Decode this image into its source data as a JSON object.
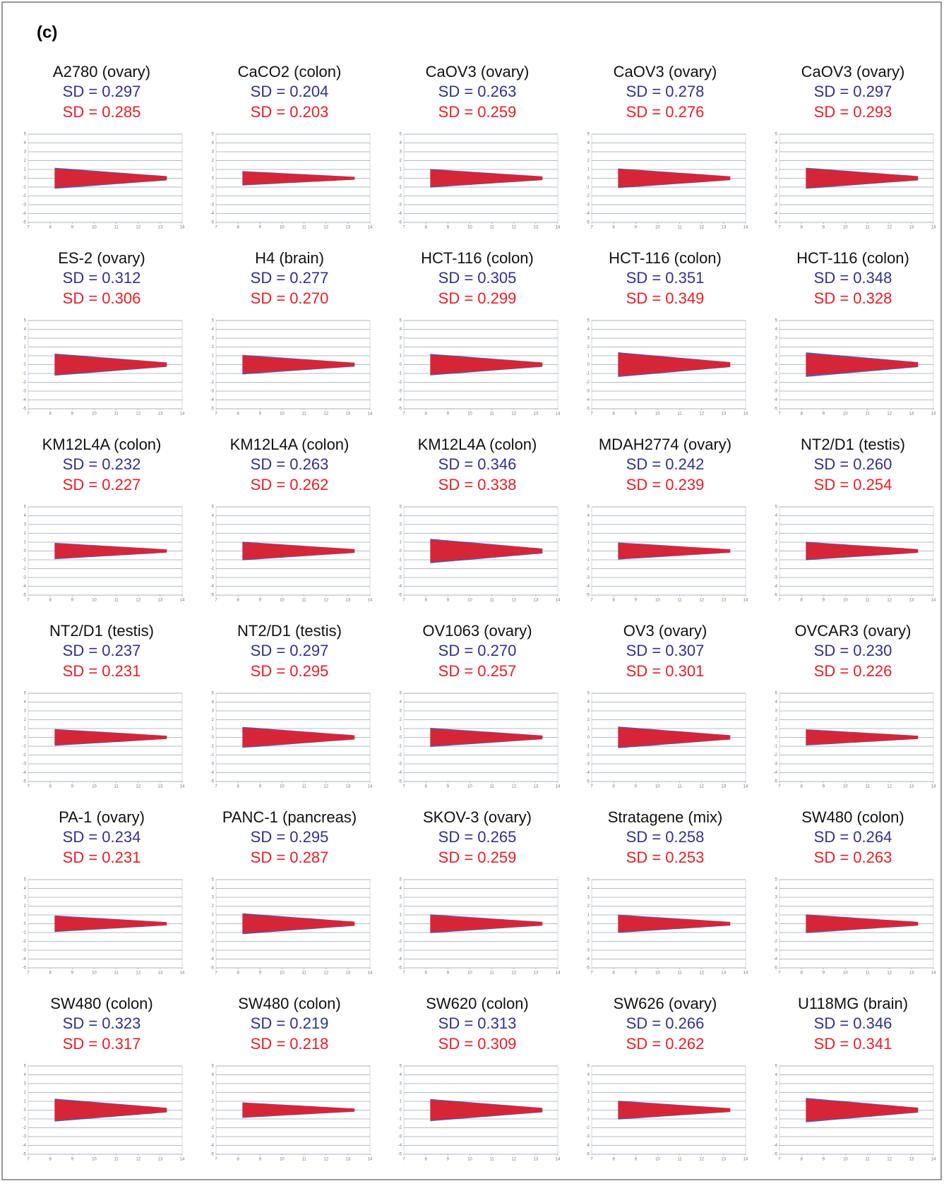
{
  "chart_data": {
    "type": "scatter",
    "label": "(c)",
    "colors": [
      "#2e3192",
      "#ed1c24"
    ],
    "xlim": [
      7,
      14
    ],
    "xticks": [
      7,
      8,
      9,
      10,
      11,
      12,
      13,
      14
    ],
    "ylim": [
      -5,
      5
    ],
    "yticks": [
      -5,
      -4,
      -3,
      -2,
      -1,
      0,
      1,
      2,
      3,
      4,
      5
    ],
    "grid": true,
    "panels": [
      {
        "title": "A2780 (ovary)",
        "sd": [
          {
            "value": 0.297,
            "label": "SD = 0.297"
          },
          {
            "value": 0.285,
            "label": "SD = 0.285"
          }
        ]
      },
      {
        "title": "CaCO2 (colon)",
        "sd": [
          {
            "value": 0.204,
            "label": "SD = 0.204"
          },
          {
            "value": 0.203,
            "label": "SD = 0.203"
          }
        ]
      },
      {
        "title": "CaOV3 (ovary)",
        "sd": [
          {
            "value": 0.263,
            "label": "SD = 0.263"
          },
          {
            "value": 0.259,
            "label": "SD = 0.259"
          }
        ]
      },
      {
        "title": "CaOV3 (ovary)",
        "sd": [
          {
            "value": 0.278,
            "label": "SD = 0.278"
          },
          {
            "value": 0.276,
            "label": "SD = 0.276"
          }
        ]
      },
      {
        "title": "CaOV3 (ovary)",
        "sd": [
          {
            "value": 0.297,
            "label": "SD = 0.297"
          },
          {
            "value": 0.293,
            "label": "SD = 0.293"
          }
        ]
      },
      {
        "title": "ES-2 (ovary)",
        "sd": [
          {
            "value": 0.312,
            "label": "SD = 0.312"
          },
          {
            "value": 0.306,
            "label": "SD = 0.306"
          }
        ]
      },
      {
        "title": "H4 (brain)",
        "sd": [
          {
            "value": 0.277,
            "label": "SD = 0.277"
          },
          {
            "value": 0.27,
            "label": "SD = 0.270"
          }
        ]
      },
      {
        "title": "HCT-116 (colon)",
        "sd": [
          {
            "value": 0.305,
            "label": "SD = 0.305"
          },
          {
            "value": 0.299,
            "label": "SD = 0.299"
          }
        ]
      },
      {
        "title": "HCT-116 (colon)",
        "sd": [
          {
            "value": 0.351,
            "label": "SD = 0.351"
          },
          {
            "value": 0.349,
            "label": "SD = 0.349"
          }
        ]
      },
      {
        "title": "HCT-116 (colon)",
        "sd": [
          {
            "value": 0.348,
            "label": "SD = 0.348"
          },
          {
            "value": 0.328,
            "label": "SD = 0.328"
          }
        ]
      },
      {
        "title": "KM12L4A (colon)",
        "sd": [
          {
            "value": 0.232,
            "label": "SD = 0.232"
          },
          {
            "value": 0.227,
            "label": "SD = 0.227"
          }
        ]
      },
      {
        "title": "KM12L4A (colon)",
        "sd": [
          {
            "value": 0.263,
            "label": "SD = 0.263"
          },
          {
            "value": 0.262,
            "label": "SD = 0.262"
          }
        ]
      },
      {
        "title": "KM12L4A (colon)",
        "sd": [
          {
            "value": 0.346,
            "label": "SD = 0.346"
          },
          {
            "value": 0.338,
            "label": "SD = 0.338"
          }
        ]
      },
      {
        "title": "MDAH2774 (ovary)",
        "sd": [
          {
            "value": 0.242,
            "label": "SD = 0.242"
          },
          {
            "value": 0.239,
            "label": "SD = 0.239"
          }
        ]
      },
      {
        "title": "NT2/D1 (testis)",
        "sd": [
          {
            "value": 0.26,
            "label": "SD = 0.260"
          },
          {
            "value": 0.254,
            "label": "SD = 0.254"
          }
        ]
      },
      {
        "title": "NT2/D1 (testis)",
        "sd": [
          {
            "value": 0.237,
            "label": "SD = 0.237"
          },
          {
            "value": 0.231,
            "label": "SD = 0.231"
          }
        ]
      },
      {
        "title": "NT2/D1 (testis)",
        "sd": [
          {
            "value": 0.297,
            "label": "SD = 0.297"
          },
          {
            "value": 0.295,
            "label": "SD = 0.295"
          }
        ]
      },
      {
        "title": "OV1063 (ovary)",
        "sd": [
          {
            "value": 0.27,
            "label": "SD = 0.270"
          },
          {
            "value": 0.257,
            "label": "SD = 0.257"
          }
        ]
      },
      {
        "title": "OV3 (ovary)",
        "sd": [
          {
            "value": 0.307,
            "label": "SD = 0.307"
          },
          {
            "value": 0.301,
            "label": "SD = 0.301"
          }
        ]
      },
      {
        "title": "OVCAR3 (ovary)",
        "sd": [
          {
            "value": 0.23,
            "label": "SD = 0.230"
          },
          {
            "value": 0.226,
            "label": "SD = 0.226"
          }
        ]
      },
      {
        "title": "PA-1 (ovary)",
        "sd": [
          {
            "value": 0.234,
            "label": "SD = 0.234"
          },
          {
            "value": 0.231,
            "label": "SD = 0.231"
          }
        ]
      },
      {
        "title": "PANC-1 (pancreas)",
        "sd": [
          {
            "value": 0.295,
            "label": "SD = 0.295"
          },
          {
            "value": 0.287,
            "label": "SD = 0.287"
          }
        ]
      },
      {
        "title": "SKOV-3 (ovary)",
        "sd": [
          {
            "value": 0.265,
            "label": "SD = 0.265"
          },
          {
            "value": 0.259,
            "label": "SD = 0.259"
          }
        ]
      },
      {
        "title": "Stratagene (mix)",
        "sd": [
          {
            "value": 0.258,
            "label": "SD = 0.258"
          },
          {
            "value": 0.253,
            "label": "SD = 0.253"
          }
        ]
      },
      {
        "title": "SW480 (colon)",
        "sd": [
          {
            "value": 0.264,
            "label": "SD = 0.264"
          },
          {
            "value": 0.263,
            "label": "SD = 0.263"
          }
        ]
      },
      {
        "title": "SW480 (colon)",
        "sd": [
          {
            "value": 0.323,
            "label": "SD = 0.323"
          },
          {
            "value": 0.317,
            "label": "SD = 0.317"
          }
        ]
      },
      {
        "title": "SW480 (colon)",
        "sd": [
          {
            "value": 0.219,
            "label": "SD = 0.219"
          },
          {
            "value": 0.218,
            "label": "SD = 0.218"
          }
        ]
      },
      {
        "title": "SW620 (colon)",
        "sd": [
          {
            "value": 0.313,
            "label": "SD = 0.313"
          },
          {
            "value": 0.309,
            "label": "SD = 0.309"
          }
        ]
      },
      {
        "title": "SW626 (ovary)",
        "sd": [
          {
            "value": 0.266,
            "label": "SD = 0.266"
          },
          {
            "value": 0.262,
            "label": "SD = 0.262"
          }
        ]
      },
      {
        "title": "U118MG (brain)",
        "sd": [
          {
            "value": 0.346,
            "label": "SD = 0.346"
          },
          {
            "value": 0.341,
            "label": "SD = 0.341"
          }
        ]
      }
    ]
  }
}
